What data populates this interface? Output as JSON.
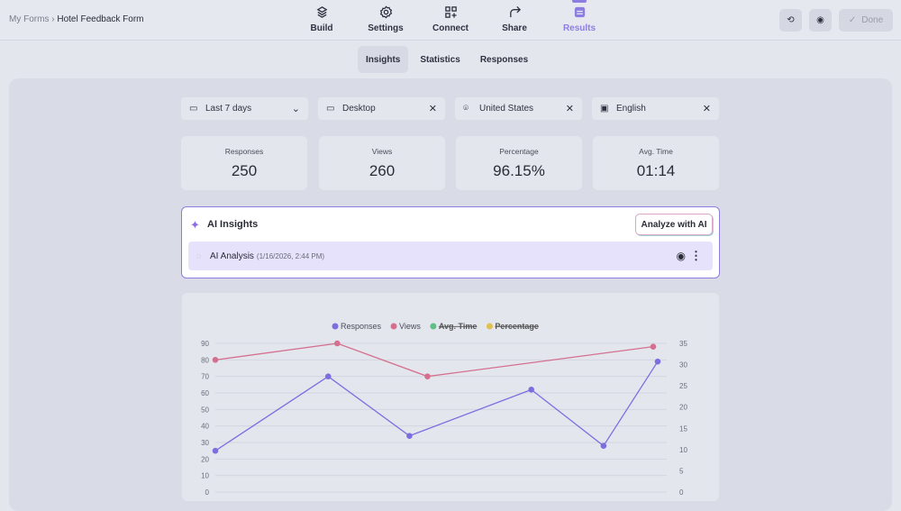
{
  "breadcrumb": {
    "parent": "My Forms",
    "separator": "›",
    "current": "Hotel Feedback Form"
  },
  "nav": [
    {
      "label": "Build",
      "icon": "layers-icon"
    },
    {
      "label": "Settings",
      "icon": "gear-icon"
    },
    {
      "label": "Connect",
      "icon": "grid-plus-icon"
    },
    {
      "label": "Share",
      "icon": "share-arrow-icon"
    },
    {
      "label": "Results",
      "icon": "inbox-icon",
      "active": true
    }
  ],
  "toolbar": {
    "done_label": "Done",
    "check": "✓"
  },
  "subtabs": [
    {
      "label": "Insights",
      "active": true
    },
    {
      "label": "Statistics"
    },
    {
      "label": "Responses"
    }
  ],
  "filters": [
    {
      "label": "Last 7 days",
      "icon": "calendar-icon"
    },
    {
      "label": "Desktop",
      "icon": "monitor-icon"
    },
    {
      "label": "United States",
      "icon": "map-pin-icon"
    },
    {
      "label": "English",
      "icon": "language-icon"
    }
  ],
  "stats": [
    {
      "label": "Responses",
      "value": "250"
    },
    {
      "label": "Views",
      "value": "260"
    },
    {
      "label": "Percentage",
      "value": "96.15%"
    },
    {
      "label": "Avg. Time",
      "value": "01:14"
    }
  ],
  "ai": {
    "title": "AI Insights",
    "analyze_label": "Analyze with AI",
    "analysis_title": "AI Analysis",
    "analysis_time": "(1/16/2026, 2:44 PM)"
  },
  "accent": "#8b7ee0",
  "chart_data": {
    "type": "line",
    "legend": [
      {
        "name": "Responses",
        "color": "#7b6fe0",
        "hidden": false
      },
      {
        "name": "Views",
        "color": "#d4708e",
        "hidden": false
      },
      {
        "name": "Avg. Time",
        "color": "#5fbf84",
        "hidden": true
      },
      {
        "name": "Percentage",
        "color": "#e0c050",
        "hidden": true
      }
    ],
    "legend_position": "top",
    "grid": true,
    "y_left": {
      "ticks": [
        "0",
        "10",
        "20",
        "30",
        "40",
        "50",
        "60",
        "70",
        "80",
        "90"
      ],
      "range": [
        0,
        90
      ]
    },
    "y_right": {
      "ticks": [
        "0",
        "5",
        "10",
        "15",
        "20",
        "25",
        "30",
        "35"
      ],
      "range": [
        0,
        35
      ]
    },
    "series": [
      {
        "name": "Responses",
        "values": [
          25,
          70,
          34,
          62,
          28,
          79
        ]
      },
      {
        "name": "Views",
        "values": [
          80,
          90,
          70,
          88
        ]
      }
    ]
  }
}
